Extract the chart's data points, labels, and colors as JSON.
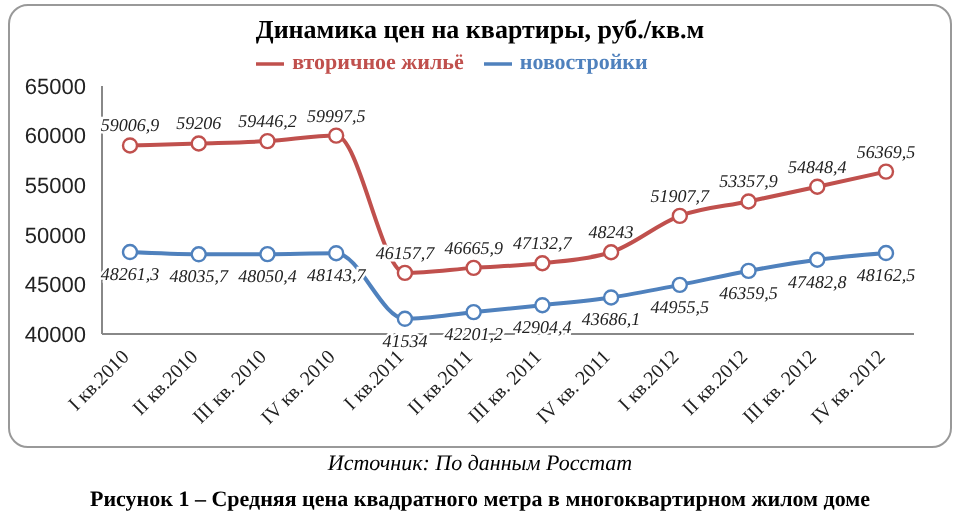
{
  "chart_data": {
    "type": "line",
    "title": "Динамика цен на квартиры, руб./кв.м",
    "categories": [
      "I кв.2010",
      "II кв.2010",
      "III кв. 2010",
      "IV кв. 2010",
      "I кв.2011",
      "II кв.2011",
      "III кв. 2011",
      "IV кв. 2011",
      "I кв.2012",
      "II кв.2012",
      "III кв. 2012",
      "IV кв. 2012"
    ],
    "series": [
      {
        "name": "новостройки",
        "color": "#4f81bd",
        "values": [
          48261.3,
          48035.7,
          48050.4,
          48143.7,
          41534,
          42201.2,
          42904.4,
          43686.1,
          44955.5,
          46359.5,
          47482.8,
          48162.5
        ],
        "value_labels": [
          "48261,3",
          "48035,7",
          "48050,4",
          "48143,7",
          "41534",
          "42201,2",
          "42904,4",
          "43686,1",
          "44955,5",
          "46359,5",
          "47482,8",
          "48162,5"
        ]
      },
      {
        "name": "вторичное жильё",
        "color": "#c0504d",
        "values": [
          59006.9,
          59206,
          59446.2,
          59997.5,
          46157.7,
          46665.9,
          47132.7,
          48243,
          51907.7,
          53357.9,
          54848.4,
          56369.5
        ],
        "value_labels": [
          "59006,9",
          "59206",
          "59446,2",
          "59997,5",
          "46157,7",
          "46665,9",
          "47132,7",
          "48243",
          "51907,7",
          "53357,9",
          "54848,4",
          "56369,5"
        ]
      }
    ],
    "ylim": [
      40000,
      65000
    ],
    "yticks": [
      40000,
      45000,
      50000,
      55000,
      60000,
      65000
    ],
    "grid": false,
    "legend": "top",
    "marker": "circle",
    "line_style": "solid",
    "annotations": [
      "Источник: По данным Росстат",
      "Рисунок 1 – Средняя цена квадратного метра в многоквартирном жилом доме"
    ]
  }
}
